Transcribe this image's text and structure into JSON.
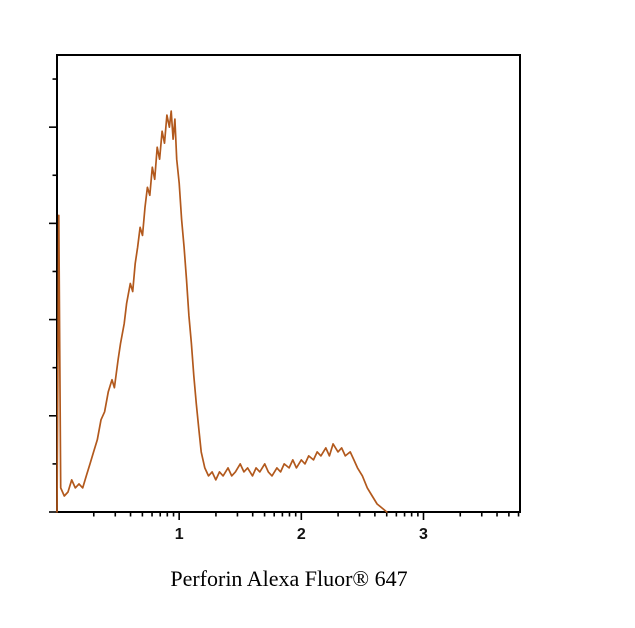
{
  "title": "Perforin Alexa Fluor® 647",
  "colors": {
    "curve": "#b2591d",
    "axis": "#000000",
    "background": "#ffffff",
    "tick_label": "#111111"
  },
  "chart_data": {
    "type": "line",
    "subtype": "flow-cytometry-histogram",
    "title": "",
    "xlabel": "Perforin Alexa Fluor® 647",
    "ylabel": "",
    "x_axis": {
      "scale": "log10-decades",
      "range": [
        0,
        3.79
      ],
      "major_ticks": [
        {
          "value": 1,
          "label": "1"
        },
        {
          "value": 2,
          "label": "2"
        },
        {
          "value": 3,
          "label": "3"
        }
      ],
      "minor_tick_values": [
        0.301,
        0.477,
        0.602,
        0.699,
        0.778,
        0.845,
        0.903,
        0.954,
        1.301,
        1.477,
        1.602,
        1.699,
        1.778,
        1.845,
        1.903,
        1.954,
        2.301,
        2.477,
        2.602,
        2.699,
        2.778,
        2.845,
        2.903,
        2.954,
        3.301,
        3.477,
        3.602,
        3.699,
        3.778
      ]
    },
    "y_axis": {
      "scale": "linear",
      "range": [
        0,
        114
      ],
      "major_tick_values": [
        0,
        24,
        48,
        72,
        96
      ],
      "minor_tick_values": [
        12,
        36,
        60,
        84,
        108
      ],
      "tick_labels": []
    },
    "legend": "none",
    "grid": false,
    "series": [
      {
        "name": "Perforin Alexa Fluor 647",
        "color": "#b2591d",
        "points": [
          [
            0.0,
            0
          ],
          [
            0.015,
            74
          ],
          [
            0.03,
            6
          ],
          [
            0.06,
            4
          ],
          [
            0.09,
            5
          ],
          [
            0.12,
            8
          ],
          [
            0.15,
            6
          ],
          [
            0.18,
            7
          ],
          [
            0.21,
            6
          ],
          [
            0.24,
            9
          ],
          [
            0.27,
            12
          ],
          [
            0.3,
            15
          ],
          [
            0.33,
            18
          ],
          [
            0.36,
            23
          ],
          [
            0.39,
            25
          ],
          [
            0.42,
            30
          ],
          [
            0.45,
            33
          ],
          [
            0.47,
            31
          ],
          [
            0.5,
            38
          ],
          [
            0.52,
            42
          ],
          [
            0.55,
            47
          ],
          [
            0.57,
            52
          ],
          [
            0.6,
            57
          ],
          [
            0.62,
            55
          ],
          [
            0.64,
            62
          ],
          [
            0.66,
            66
          ],
          [
            0.68,
            71
          ],
          [
            0.7,
            69
          ],
          [
            0.72,
            76
          ],
          [
            0.74,
            81
          ],
          [
            0.76,
            79
          ],
          [
            0.78,
            86
          ],
          [
            0.8,
            83
          ],
          [
            0.82,
            91
          ],
          [
            0.84,
            88
          ],
          [
            0.86,
            95
          ],
          [
            0.88,
            92
          ],
          [
            0.9,
            99
          ],
          [
            0.92,
            96
          ],
          [
            0.935,
            100
          ],
          [
            0.95,
            93
          ],
          [
            0.965,
            98
          ],
          [
            0.98,
            88
          ],
          [
            1.0,
            82
          ],
          [
            1.02,
            73
          ],
          [
            1.04,
            66
          ],
          [
            1.06,
            58
          ],
          [
            1.08,
            49
          ],
          [
            1.1,
            42
          ],
          [
            1.12,
            34
          ],
          [
            1.14,
            27
          ],
          [
            1.16,
            21
          ],
          [
            1.18,
            15
          ],
          [
            1.21,
            11
          ],
          [
            1.24,
            9
          ],
          [
            1.27,
            10
          ],
          [
            1.3,
            8
          ],
          [
            1.33,
            10
          ],
          [
            1.36,
            9
          ],
          [
            1.4,
            11
          ],
          [
            1.43,
            9
          ],
          [
            1.46,
            10
          ],
          [
            1.5,
            12
          ],
          [
            1.53,
            10
          ],
          [
            1.56,
            11
          ],
          [
            1.6,
            9
          ],
          [
            1.63,
            11
          ],
          [
            1.66,
            10
          ],
          [
            1.7,
            12
          ],
          [
            1.73,
            10
          ],
          [
            1.76,
            9
          ],
          [
            1.8,
            11
          ],
          [
            1.83,
            10
          ],
          [
            1.86,
            12
          ],
          [
            1.9,
            11
          ],
          [
            1.93,
            13
          ],
          [
            1.96,
            11
          ],
          [
            2.0,
            13
          ],
          [
            2.03,
            12
          ],
          [
            2.06,
            14
          ],
          [
            2.1,
            13
          ],
          [
            2.13,
            15
          ],
          [
            2.16,
            14
          ],
          [
            2.2,
            16
          ],
          [
            2.23,
            14
          ],
          [
            2.26,
            17
          ],
          [
            2.3,
            15
          ],
          [
            2.33,
            16
          ],
          [
            2.36,
            14
          ],
          [
            2.4,
            15
          ],
          [
            2.43,
            13
          ],
          [
            2.46,
            11
          ],
          [
            2.5,
            9
          ],
          [
            2.54,
            6
          ],
          [
            2.58,
            4
          ],
          [
            2.62,
            2
          ],
          [
            2.66,
            1
          ],
          [
            2.7,
            0
          ]
        ]
      }
    ]
  }
}
